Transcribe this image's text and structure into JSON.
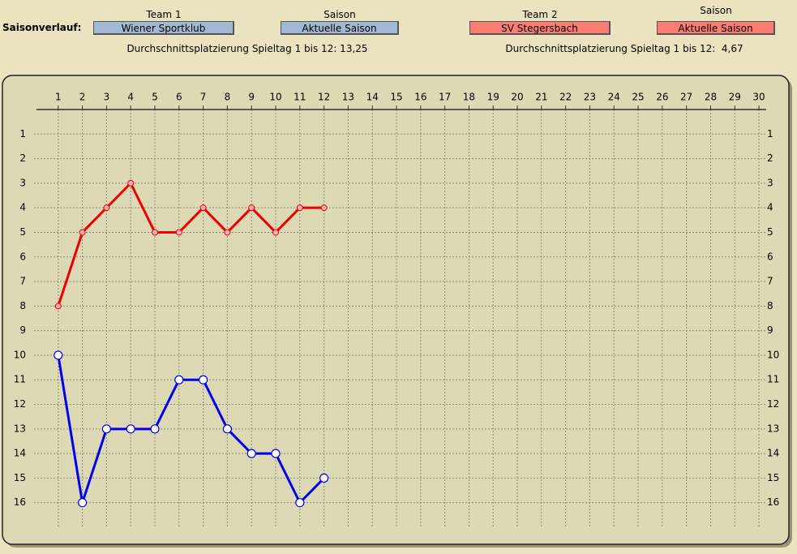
{
  "header": {
    "label": "Saisonverlauf:",
    "team1": {
      "label": "Team 1",
      "value": "Wiener Sportklub",
      "season_label": "Saison",
      "season": "Aktuelle Saison",
      "average": "Durchschnittsplatzierung Spieltag 1 bis 12: 13,25"
    },
    "team2": {
      "label": "Team 2",
      "value": "SV Stegersbach",
      "season_label": "Saison",
      "season": "Aktuelle Saison",
      "average": "Durchschnittsplatzierung Spieltag 1 bis 12:  4,67"
    }
  },
  "chart_data": {
    "type": "line",
    "x": [
      1,
      2,
      3,
      4,
      5,
      6,
      7,
      8,
      9,
      10,
      11,
      12
    ],
    "xlim": [
      0,
      30.3
    ],
    "xticks": [
      1,
      2,
      3,
      4,
      5,
      6,
      7,
      8,
      9,
      10,
      11,
      12,
      13,
      14,
      15,
      16,
      17,
      18,
      19,
      20,
      21,
      22,
      23,
      24,
      25,
      26,
      27,
      28,
      29,
      30
    ],
    "ylim": [
      0,
      17
    ],
    "yticks": [
      1,
      2,
      3,
      4,
      5,
      6,
      7,
      8,
      9,
      10,
      11,
      12,
      13,
      14,
      15,
      16
    ],
    "y_inverted": true,
    "grid": true,
    "series": [
      {
        "color": "#0000ee",
        "values": [
          10,
          16,
          13,
          13,
          13,
          11,
          11,
          13,
          14,
          14,
          16,
          15
        ]
      },
      {
        "color": "#ee0000",
        "values": [
          8,
          5,
          4,
          3,
          5,
          5,
          4,
          5,
          4,
          5,
          4,
          4
        ]
      }
    ]
  }
}
